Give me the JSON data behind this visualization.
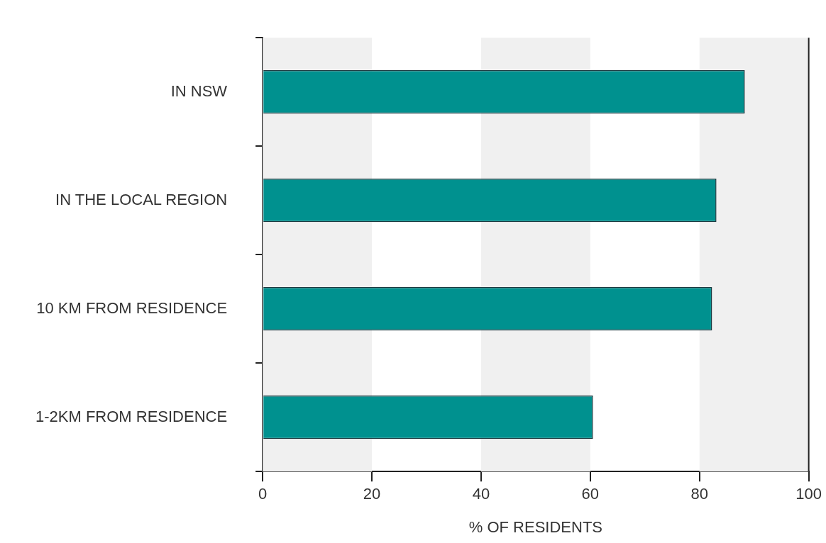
{
  "chart_data": {
    "type": "bar",
    "orientation": "horizontal",
    "xlabel": "% OF RESIDENTS",
    "categories": [
      "IN NSW",
      "IN THE LOCAL REGION",
      "10 KM FROM RESIDENCE",
      "1-2KM FROM RESIDENCE"
    ],
    "values": [
      88.3,
      83.1,
      82.3,
      60.5
    ],
    "color": "#00918f",
    "xlim": [
      0,
      100
    ],
    "xticks": [
      0,
      20,
      40,
      60,
      80,
      100
    ],
    "grid": false,
    "legend": false,
    "bands": [
      {
        "axis": "x",
        "from": 0,
        "to": 20,
        "color": "#f0f0f0"
      },
      {
        "axis": "x",
        "from": 40,
        "to": 60,
        "color": "#f0f0f0"
      },
      {
        "axis": "x",
        "from": 80,
        "to": 100,
        "color": "#f0f0f0"
      }
    ]
  }
}
